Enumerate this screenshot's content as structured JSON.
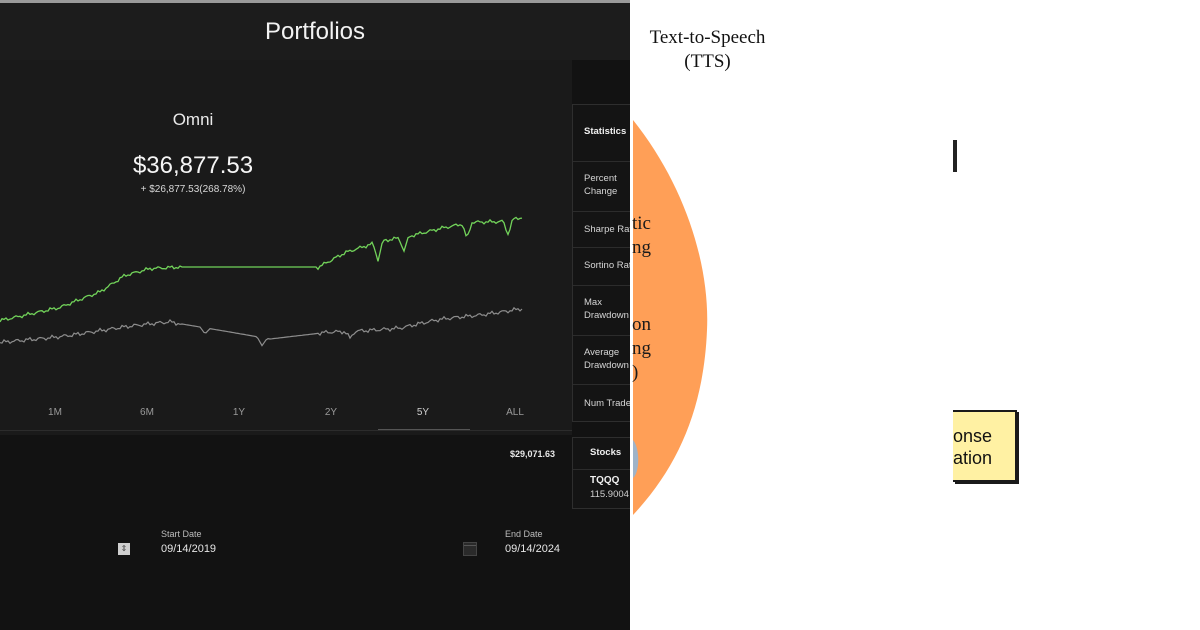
{
  "app": {
    "title": "Portfolios",
    "portfolio": {
      "name": "Omni",
      "value": "$36,877.53",
      "change": "+ $26,877.53(268.78%)"
    },
    "range_tabs": [
      {
        "label": "1M"
      },
      {
        "label": "6M"
      },
      {
        "label": "1Y"
      },
      {
        "label": "2Y"
      },
      {
        "label": "5Y"
      },
      {
        "label": "ALL"
      }
    ],
    "active_range": "5Y",
    "row_value": "$29,071.63",
    "statistics": {
      "title": "Statistics",
      "rows": [
        "Percent\nChange",
        "Sharpe Ratio",
        "Sortino Ratio",
        "Max\nDrawdown",
        "Average\nDrawdown",
        "Num Trades"
      ]
    },
    "stocks": {
      "title": "Stocks",
      "ticker": "TQQQ",
      "amount": "115.9004"
    },
    "dates": {
      "start_label": "Start Date",
      "start_value": "09/14/2019",
      "end_label": "End Date",
      "end_value": "09/14/2024"
    },
    "colors": {
      "background": "#121212",
      "panel": "#1a1a1a",
      "portfolio_line": "#72d35a",
      "benchmark_line": "#8e8e8e"
    }
  },
  "diagram": {
    "tts_label": "Text-to-Speech\n(TTS)",
    "orange_text_1": "tic\nng",
    "orange_text_2": "on\nng\n)",
    "response_text": "onse\nation",
    "colors": {
      "orange": "#ff9f57",
      "box_fill": "#fff1a3"
    }
  }
}
